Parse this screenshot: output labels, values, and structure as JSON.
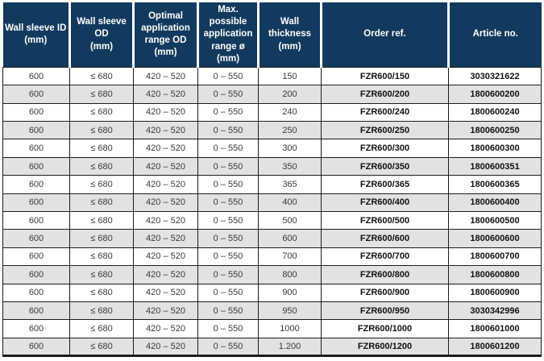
{
  "colors": {
    "header_bg": "#123a5e",
    "header_text": "#ffffff",
    "row_bg": "#ffffff",
    "row_alt_bg": "#e2e2e2",
    "grid": "#1c1c1c",
    "body_text": "#3a3a3a"
  },
  "table": {
    "column_keys": [
      "wall-sleeve-id",
      "wall-sleeve-od",
      "optimal-application-range-od",
      "max-possible-application-range",
      "wall-thickness",
      "order-ref",
      "article-no"
    ],
    "columns": [
      {
        "label": "Wall sleeve ID\n(mm)"
      },
      {
        "label": "Wall sleeve OD\n(mm)"
      },
      {
        "label": "Optimal\napplication\nrange OD\n(mm)"
      },
      {
        "label": "Max. possible\napplication\nrange ø (mm)"
      },
      {
        "label": "Wall thickness\n(mm)"
      },
      {
        "label": "Order ref."
      },
      {
        "label": "Article no."
      }
    ],
    "rows": [
      [
        "600",
        "≤ 680",
        "420 – 520",
        "0 – 550",
        "150",
        "FZR600/150",
        "3030321622"
      ],
      [
        "600",
        "≤ 680",
        "420 – 520",
        "0 – 550",
        "200",
        "FZR600/200",
        "1800600200"
      ],
      [
        "600",
        "≤ 680",
        "420 – 520",
        "0 – 550",
        "240",
        "FZR600/240",
        "1800600240"
      ],
      [
        "600",
        "≤ 680",
        "420 – 520",
        "0 – 550",
        "250",
        "FZR600/250",
        "1800600250"
      ],
      [
        "600",
        "≤ 680",
        "420 – 520",
        "0 – 550",
        "300",
        "FZR600/300",
        "1800600300"
      ],
      [
        "600",
        "≤ 680",
        "420 – 520",
        "0 – 550",
        "350",
        "FZR600/350",
        "1800600351"
      ],
      [
        "600",
        "≤ 680",
        "420 – 520",
        "0 – 550",
        "365",
        "FZR600/365",
        "1800600365"
      ],
      [
        "600",
        "≤ 680",
        "420 – 520",
        "0 – 550",
        "400",
        "FZR600/400",
        "1800600400"
      ],
      [
        "600",
        "≤ 680",
        "420 – 520",
        "0 – 550",
        "500",
        "FZR600/500",
        "1800600500"
      ],
      [
        "600",
        "≤ 680",
        "420 – 520",
        "0 – 550",
        "600",
        "FZR600/600",
        "1800600600"
      ],
      [
        "600",
        "≤ 680",
        "420 – 520",
        "0 – 550",
        "700",
        "FZR600/700",
        "1800600700"
      ],
      [
        "600",
        "≤ 680",
        "420 – 520",
        "0 – 550",
        "800",
        "FZR600/800",
        "1800600800"
      ],
      [
        "600",
        "≤ 680",
        "420 – 520",
        "0 – 550",
        "900",
        "FZR600/900",
        "1800600900"
      ],
      [
        "600",
        "≤ 680",
        "420 – 520",
        "0 – 550",
        "950",
        "FZR600/950",
        "3030342996"
      ],
      [
        "600",
        "≤ 680",
        "420 – 520",
        "0 – 550",
        "1000",
        "FZR600/1000",
        "1800601000"
      ],
      [
        "600",
        "≤ 680",
        "420 – 520",
        "0 – 550",
        "1.200",
        "FZR600/1200",
        "1800601200"
      ]
    ]
  }
}
